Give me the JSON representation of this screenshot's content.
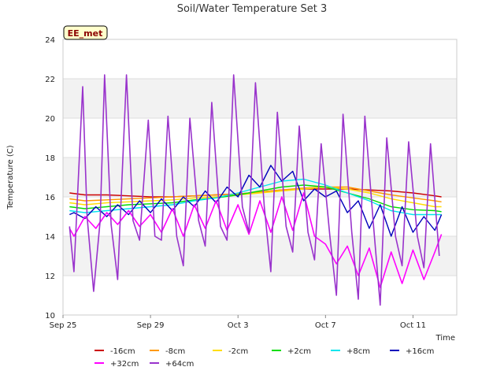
{
  "chart_data": {
    "type": "line",
    "title": "Soil/Water Temperature Set 3",
    "xlabel": "Time",
    "ylabel": "Temperature (C)",
    "badge": "EE_met",
    "ylim": [
      10,
      24
    ],
    "yticks": [
      10,
      12,
      14,
      16,
      18,
      20,
      22,
      24
    ],
    "xlim": [
      0,
      18
    ],
    "xticks": [
      {
        "day": 0,
        "label": "Sep 25"
      },
      {
        "day": 4,
        "label": "Sep 29"
      },
      {
        "day": 8,
        "label": "Oct 3"
      },
      {
        "day": 12,
        "label": "Oct 7"
      },
      {
        "day": 16,
        "label": "Oct 11"
      }
    ],
    "grid": true,
    "legend_position": "bottom",
    "series": [
      {
        "name": "-16cm",
        "color": "#cc0000",
        "x": [
          0.3,
          1,
          2,
          3,
          4,
          5,
          6,
          7,
          8,
          9,
          10,
          11,
          12,
          13,
          14,
          15,
          16,
          17,
          17.3
        ],
        "y": [
          16.2,
          16.1,
          16.1,
          16.05,
          16.0,
          16.0,
          16.05,
          16.1,
          16.15,
          16.25,
          16.35,
          16.4,
          16.4,
          16.4,
          16.35,
          16.3,
          16.2,
          16.05,
          16.0
        ]
      },
      {
        "name": "-8cm",
        "color": "#ff9900",
        "x": [
          0.3,
          1,
          2,
          3,
          4,
          5,
          6,
          7,
          8,
          9,
          10,
          11,
          12,
          13,
          14,
          15,
          16,
          17,
          17.3
        ],
        "y": [
          15.9,
          15.8,
          15.85,
          15.9,
          15.95,
          16.0,
          16.05,
          16.1,
          16.15,
          16.25,
          16.35,
          16.45,
          16.5,
          16.5,
          16.3,
          16.1,
          15.95,
          15.8,
          15.75
        ]
      },
      {
        "name": "-2cm",
        "color": "#ffdd00",
        "x": [
          0.3,
          1,
          2,
          3,
          4,
          5,
          6,
          7,
          8,
          9,
          10,
          11,
          12,
          13,
          14,
          15,
          16,
          17,
          17.3
        ],
        "y": [
          15.7,
          15.6,
          15.7,
          15.75,
          15.8,
          15.85,
          15.95,
          16.0,
          16.1,
          16.2,
          16.3,
          16.4,
          16.5,
          16.4,
          16.2,
          15.9,
          15.7,
          15.5,
          15.5
        ]
      },
      {
        "name": "+2cm",
        "color": "#00dd00",
        "x": [
          0.3,
          1,
          2,
          3,
          4,
          5,
          6,
          7,
          8,
          9,
          10,
          11,
          12,
          13,
          14,
          15,
          16,
          17,
          17.3
        ],
        "y": [
          15.5,
          15.4,
          15.5,
          15.6,
          15.65,
          15.7,
          15.85,
          15.95,
          16.1,
          16.3,
          16.5,
          16.6,
          16.5,
          16.2,
          15.9,
          15.5,
          15.35,
          15.3,
          15.25
        ]
      },
      {
        "name": "+8cm",
        "color": "#00e5ee",
        "x": [
          0.3,
          1,
          2,
          3,
          4,
          5,
          6,
          7,
          8,
          9,
          10,
          11,
          12,
          13,
          14,
          15,
          16,
          17,
          17.3
        ],
        "y": [
          15.3,
          15.2,
          15.3,
          15.4,
          15.5,
          15.6,
          15.8,
          15.95,
          16.2,
          16.5,
          16.8,
          16.9,
          16.6,
          16.2,
          15.8,
          15.3,
          15.1,
          15.1,
          15.1
        ]
      },
      {
        "name": "+16cm",
        "color": "#0000bb",
        "x": [
          0.3,
          0.5,
          1,
          1.5,
          2,
          2.5,
          3,
          3.5,
          4,
          4.5,
          5,
          5.5,
          6,
          6.5,
          7,
          7.5,
          8,
          8.5,
          9,
          9.5,
          10,
          10.5,
          11,
          11.5,
          12,
          12.5,
          13,
          13.5,
          14,
          14.5,
          15,
          15.5,
          16,
          16.5,
          17,
          17.3
        ],
        "y": [
          15.1,
          15.2,
          14.9,
          15.5,
          15.0,
          15.6,
          15.1,
          15.8,
          15.2,
          15.9,
          15.3,
          16.0,
          15.5,
          16.3,
          15.7,
          16.5,
          16.0,
          17.1,
          16.5,
          17.6,
          16.8,
          17.3,
          15.8,
          16.4,
          16.0,
          16.3,
          15.2,
          15.8,
          14.4,
          15.6,
          14.0,
          15.5,
          14.2,
          15.0,
          14.3,
          15.1
        ]
      },
      {
        "name": "+32cm",
        "color": "#ff00ff",
        "x": [
          0.3,
          0.5,
          1,
          1.5,
          2,
          2.5,
          3,
          3.5,
          4,
          4.5,
          5,
          5.5,
          6,
          6.5,
          7,
          7.5,
          8,
          8.5,
          9,
          9.5,
          10,
          10.5,
          11,
          11.5,
          12,
          12.5,
          13,
          13.5,
          14,
          14.5,
          15,
          15.5,
          16,
          16.5,
          17,
          17.3
        ],
        "y": [
          14.4,
          14.0,
          15.0,
          14.4,
          15.2,
          14.6,
          15.3,
          14.5,
          15.1,
          14.2,
          15.4,
          14.0,
          15.6,
          14.4,
          15.8,
          14.3,
          15.6,
          14.1,
          15.8,
          14.2,
          16.0,
          14.3,
          16.2,
          14.0,
          13.6,
          12.6,
          13.5,
          12.0,
          13.4,
          11.4,
          13.2,
          11.6,
          13.3,
          11.8,
          13.2,
          14.1
        ]
      },
      {
        "name": "+64cm",
        "color": "#9933cc",
        "x": [
          0.3,
          0.5,
          0.9,
          1.1,
          1.4,
          1.7,
          1.9,
          2.2,
          2.5,
          2.9,
          3.2,
          3.5,
          3.9,
          4.2,
          4.5,
          4.8,
          5.2,
          5.5,
          5.8,
          6.2,
          6.5,
          6.8,
          7.2,
          7.5,
          7.8,
          8.2,
          8.5,
          8.8,
          9.2,
          9.5,
          9.8,
          10.2,
          10.5,
          10.8,
          11.2,
          11.5,
          11.8,
          12.2,
          12.5,
          12.8,
          13.2,
          13.5,
          13.8,
          14.2,
          14.5,
          14.8,
          15.2,
          15.5,
          15.8,
          16.2,
          16.5,
          16.8,
          17.2
        ],
        "y": [
          14.5,
          12.2,
          21.6,
          15.0,
          11.2,
          14.8,
          22.2,
          14.6,
          11.8,
          22.2,
          14.8,
          13.8,
          19.9,
          14.0,
          13.8,
          20.1,
          14.0,
          12.5,
          20.0,
          14.8,
          13.5,
          20.8,
          14.5,
          13.8,
          22.2,
          15.5,
          14.2,
          21.8,
          15.5,
          12.2,
          20.3,
          14.5,
          13.2,
          19.6,
          14.2,
          12.8,
          18.7,
          14.0,
          11.0,
          20.2,
          14.2,
          10.8,
          20.1,
          14.5,
          10.5,
          19.0,
          14.0,
          12.5,
          18.8,
          14.0,
          12.4,
          18.7,
          13.0
        ]
      }
    ]
  }
}
